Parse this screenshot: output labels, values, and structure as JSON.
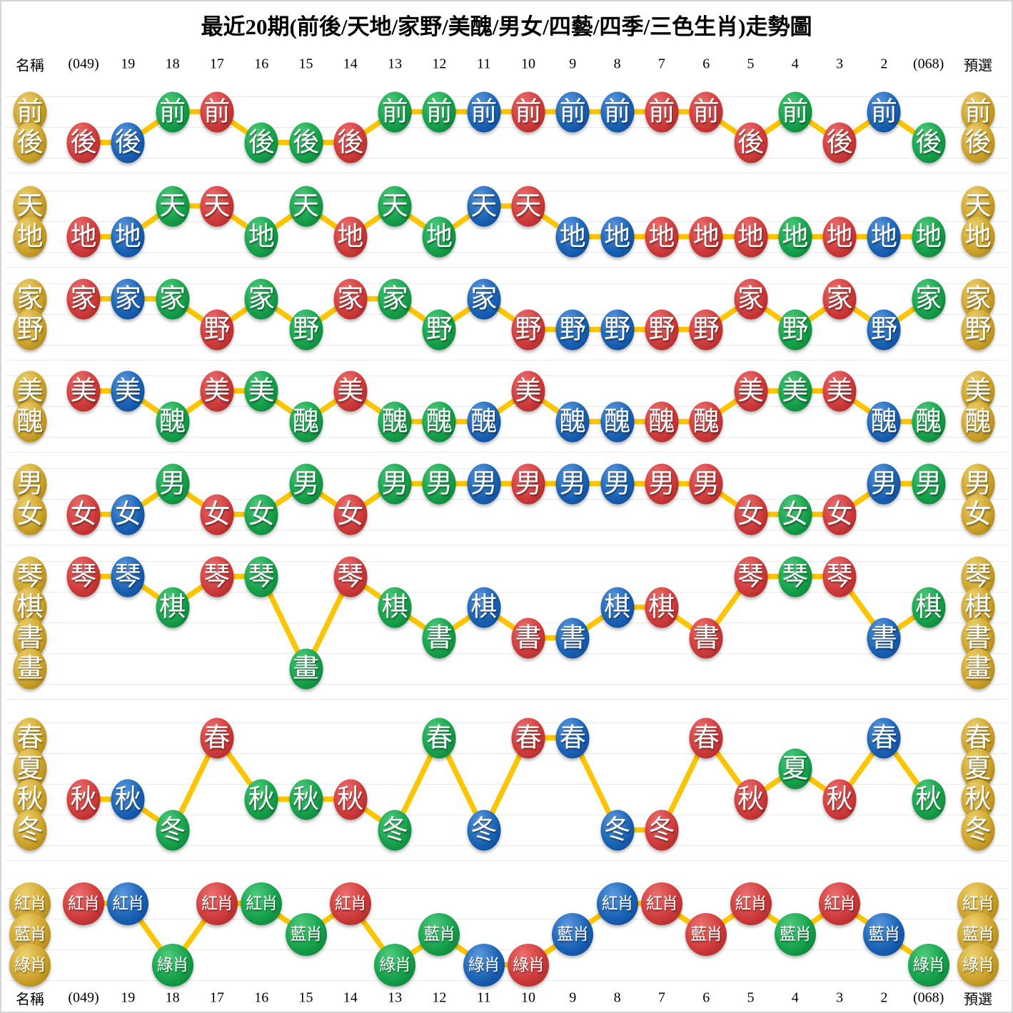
{
  "title": "最近20期(前後/天地/家野/美醜/男女/四藝/四季/三色生肖)走勢圖",
  "header": {
    "name_label": "名稱",
    "preselect_label": "預選",
    "periods": [
      "(049)",
      "19",
      "18",
      "17",
      "16",
      "15",
      "14",
      "13",
      "12",
      "11",
      "10",
      "9",
      "8",
      "7",
      "6",
      "5",
      "4",
      "3",
      "2",
      "(068)"
    ]
  },
  "footer": {
    "name_label": "名稱",
    "preselect_label": "預選",
    "periods": [
      "(049)",
      "19",
      "18",
      "17",
      "16",
      "15",
      "14",
      "13",
      "12",
      "11",
      "10",
      "9",
      "8",
      "7",
      "6",
      "5",
      "4",
      "3",
      "2",
      "(068)"
    ]
  },
  "colors": {
    "red": "#cf3b3b",
    "blue": "#1a62b4",
    "green": "#16a14b",
    "gold": "#cda32b",
    "line": "#fdc500",
    "gridline": "#e9e9e9",
    "ball_text": "#ffffff"
  },
  "chart_data": {
    "type": "line",
    "title": "最近20期(前後/天地/家野/美醜/男女/四藝/四季/三色生肖)走勢圖",
    "x": [
      "(049)",
      "19",
      "18",
      "17",
      "16",
      "15",
      "14",
      "13",
      "12",
      "11",
      "10",
      "9",
      "8",
      "7",
      "6",
      "5",
      "4",
      "3",
      "2",
      "(068)"
    ],
    "grid": true,
    "legend_position": "none",
    "ball_colors": [
      "red",
      "blue",
      "green",
      "red",
      "green",
      "green",
      "red",
      "green",
      "green",
      "blue",
      "red",
      "blue",
      "blue",
      "red",
      "red",
      "red",
      "green",
      "red",
      "blue",
      "green"
    ],
    "sections": [
      {
        "name": "前後",
        "rows": [
          "前",
          "後"
        ],
        "values": [
          "後",
          "後",
          "前",
          "前",
          "後",
          "後",
          "後",
          "前",
          "前",
          "前",
          "前",
          "前",
          "前",
          "前",
          "前",
          "後",
          "前",
          "後",
          "前",
          "後"
        ]
      },
      {
        "name": "天地",
        "rows": [
          "天",
          "地"
        ],
        "values": [
          "地",
          "地",
          "天",
          "天",
          "地",
          "天",
          "地",
          "天",
          "地",
          "天",
          "天",
          "地",
          "地",
          "地",
          "地",
          "地",
          "地",
          "地",
          "地",
          "地"
        ]
      },
      {
        "name": "家野",
        "rows": [
          "家",
          "野"
        ],
        "values": [
          "家",
          "家",
          "家",
          "野",
          "家",
          "野",
          "家",
          "家",
          "野",
          "家",
          "野",
          "野",
          "野",
          "野",
          "野",
          "家",
          "野",
          "家",
          "野",
          "家"
        ]
      },
      {
        "name": "美醜",
        "rows": [
          "美",
          "醜"
        ],
        "values": [
          "美",
          "美",
          "醜",
          "美",
          "美",
          "醜",
          "美",
          "醜",
          "醜",
          "醜",
          "美",
          "醜",
          "醜",
          "醜",
          "醜",
          "美",
          "美",
          "美",
          "醜",
          "醜"
        ]
      },
      {
        "name": "男女",
        "rows": [
          "男",
          "女"
        ],
        "values": [
          "女",
          "女",
          "男",
          "女",
          "女",
          "男",
          "女",
          "男",
          "男",
          "男",
          "男",
          "男",
          "男",
          "男",
          "男",
          "女",
          "女",
          "女",
          "男",
          "男"
        ]
      },
      {
        "name": "四藝",
        "rows": [
          "琴",
          "棋",
          "書",
          "畫"
        ],
        "values": [
          "琴",
          "琴",
          "棋",
          "琴",
          "琴",
          "畫",
          "琴",
          "棋",
          "書",
          "棋",
          "書",
          "書",
          "棋",
          "棋",
          "書",
          "琴",
          "琴",
          "琴",
          "書",
          "棋"
        ]
      },
      {
        "name": "四季",
        "rows": [
          "春",
          "夏",
          "秋",
          "冬"
        ],
        "values": [
          "秋",
          "秋",
          "冬",
          "春",
          "秋",
          "秋",
          "秋",
          "冬",
          "春",
          "冬",
          "春",
          "春",
          "冬",
          "冬",
          "春",
          "秋",
          "夏",
          "秋",
          "春",
          "秋"
        ]
      },
      {
        "name": "三色生肖",
        "rows": [
          "紅肖",
          "藍肖",
          "綠肖"
        ],
        "values": [
          "紅肖",
          "紅肖",
          "綠肖",
          "紅肖",
          "紅肖",
          "藍肖",
          "紅肖",
          "綠肖",
          "藍肖",
          "綠肖",
          "綠肖",
          "藍肖",
          "紅肖",
          "紅肖",
          "藍肖",
          "紅肖",
          "藍肖",
          "紅肖",
          "藍肖",
          "綠肖"
        ]
      }
    ]
  }
}
